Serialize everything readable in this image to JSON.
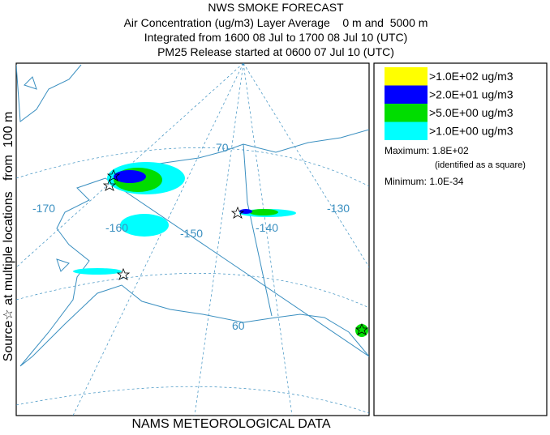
{
  "header": {
    "title": "NWS SMOKE FORECAST",
    "lines": [
      "Air Concentration (ug/m3) Layer Average    0 m and  5000 m",
      "Integrated from 1600 08 Jul to 1700 08 Jul 10 (UTC)",
      "PM25 Release started at 0600 07 Jul 10 (UTC)"
    ]
  },
  "side_label": "Source☆ at multiple locations   from  100 m",
  "footer": "NAMS METEOROLOGICAL DATA",
  "legend": {
    "items": [
      {
        "label": ">1.0E+02 ug/m3",
        "color": "#ffff00"
      },
      {
        "label": ">2.0E+01 ug/m3",
        "color": "#0000ff"
      },
      {
        "label": ">5.0E+00 ug/m3",
        "color": "#00dd00"
      },
      {
        "label": ">1.0E+00 ug/m3",
        "color": "#00ffff"
      }
    ]
  },
  "stats": {
    "maximum": "Maximum: 1.8E+02",
    "note": "(identified as a square)",
    "minimum": "Minimum: 1.0E-34"
  },
  "map": {
    "labels": [
      "-170",
      "-160",
      "-150",
      "-140",
      "-130",
      "70",
      "60"
    ]
  }
}
